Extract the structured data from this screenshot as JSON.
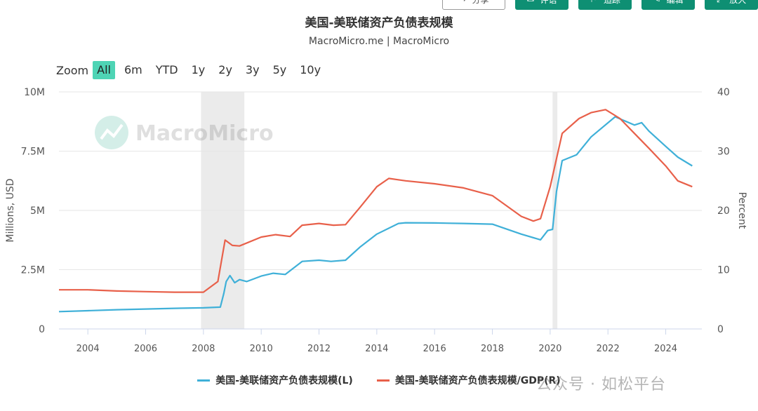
{
  "toolbar": {
    "buttons": [
      {
        "label": "分享",
        "icon": "share-icon",
        "style": "outline"
      },
      {
        "label": "评语",
        "icon": "comment-icon",
        "style": "green"
      },
      {
        "label": "追踪",
        "icon": "track-icon",
        "style": "green"
      },
      {
        "label": "编辑",
        "icon": "edit-icon",
        "style": "green"
      },
      {
        "label": "放大",
        "icon": "expand-icon",
        "style": "green"
      }
    ]
  },
  "zoom": {
    "label": "Zoom",
    "options": [
      "All",
      "6m",
      "YTD",
      "1y",
      "2y",
      "3y",
      "5y",
      "10y"
    ],
    "selected": "All"
  },
  "watermark": {
    "brand": "MacroMicro",
    "bottom": "公众号 · 如松平台"
  },
  "colors": {
    "series_l": "#3fb0d8",
    "series_r": "#e8604a",
    "zoom_active": "#4ed4b5",
    "recession": "#ebebeb"
  },
  "chart_data": {
    "type": "line",
    "title": "美国-美联储资产负债表规模",
    "subtitle": "MacroMicro.me | MacroMicro",
    "xlabel": "",
    "ylabel_left": "Millions, USD",
    "ylabel_right": "Percent",
    "x_ticks": [
      "2004",
      "2006",
      "2008",
      "2010",
      "2012",
      "2014",
      "2016",
      "2018",
      "2020",
      "2022",
      "2024"
    ],
    "y_left_ticks": [
      "0",
      "2.5M",
      "5M",
      "7.5M",
      "10M"
    ],
    "y_right_ticks": [
      "0",
      "10",
      "20",
      "30",
      "40"
    ],
    "ylim_left": [
      0,
      10000000
    ],
    "ylim_right": [
      0,
      40
    ],
    "xlim": [
      "2003-01-01",
      "2025-04-01"
    ],
    "recessions": [
      [
        "2007-12-01",
        "2009-06-01"
      ],
      [
        "2020-02-01",
        "2020-04-01"
      ]
    ],
    "series": [
      {
        "name": "美国-美联储资产负债表规模(L)",
        "axis": "left",
        "points": [
          [
            "2003-01-01",
            730000
          ],
          [
            "2004-01-01",
            770000
          ],
          [
            "2005-01-01",
            810000
          ],
          [
            "2006-01-01",
            840000
          ],
          [
            "2007-01-01",
            870000
          ],
          [
            "2008-01-01",
            890000
          ],
          [
            "2008-08-01",
            920000
          ],
          [
            "2008-09-15",
            1500000
          ],
          [
            "2008-10-15",
            2000000
          ],
          [
            "2008-12-01",
            2250000
          ],
          [
            "2009-02-01",
            1950000
          ],
          [
            "2009-04-01",
            2080000
          ],
          [
            "2009-07-01",
            2000000
          ],
          [
            "2010-01-01",
            2230000
          ],
          [
            "2010-06-01",
            2350000
          ],
          [
            "2010-11-01",
            2300000
          ],
          [
            "2011-06-01",
            2850000
          ],
          [
            "2012-01-01",
            2900000
          ],
          [
            "2012-06-01",
            2850000
          ],
          [
            "2012-12-01",
            2900000
          ],
          [
            "2013-06-01",
            3450000
          ],
          [
            "2014-01-01",
            4000000
          ],
          [
            "2014-10-01",
            4450000
          ],
          [
            "2015-01-01",
            4480000
          ],
          [
            "2016-01-01",
            4470000
          ],
          [
            "2017-01-01",
            4450000
          ],
          [
            "2018-01-01",
            4420000
          ],
          [
            "2019-01-01",
            4000000
          ],
          [
            "2019-09-01",
            3760000
          ],
          [
            "2019-12-01",
            4150000
          ],
          [
            "2020-02-01",
            4200000
          ],
          [
            "2020-03-20",
            5800000
          ],
          [
            "2020-06-01",
            7100000
          ],
          [
            "2020-12-01",
            7350000
          ],
          [
            "2021-06-01",
            8100000
          ],
          [
            "2022-04-01",
            8950000
          ],
          [
            "2022-12-01",
            8600000
          ],
          [
            "2023-03-01",
            8700000
          ],
          [
            "2023-06-01",
            8350000
          ],
          [
            "2024-01-01",
            7700000
          ],
          [
            "2024-06-01",
            7250000
          ],
          [
            "2024-12-01",
            6880000
          ]
        ]
      },
      {
        "name": "美国-美联储资产负债表规模/GDP(R)",
        "axis": "right",
        "points": [
          [
            "2003-01-01",
            6.6
          ],
          [
            "2004-01-01",
            6.6
          ],
          [
            "2005-01-01",
            6.4
          ],
          [
            "2006-01-01",
            6.3
          ],
          [
            "2007-01-01",
            6.2
          ],
          [
            "2008-01-01",
            6.2
          ],
          [
            "2008-07-01",
            8.0
          ],
          [
            "2008-10-01",
            15.0
          ],
          [
            "2009-01-01",
            14.1
          ],
          [
            "2009-04-01",
            14.0
          ],
          [
            "2010-01-01",
            15.5
          ],
          [
            "2010-07-01",
            15.9
          ],
          [
            "2011-01-01",
            15.6
          ],
          [
            "2011-06-01",
            17.5
          ],
          [
            "2012-01-01",
            17.8
          ],
          [
            "2012-07-01",
            17.5
          ],
          [
            "2012-12-01",
            17.6
          ],
          [
            "2013-06-01",
            20.5
          ],
          [
            "2014-01-01",
            24.0
          ],
          [
            "2014-06-01",
            25.4
          ],
          [
            "2015-01-01",
            25.0
          ],
          [
            "2016-01-01",
            24.5
          ],
          [
            "2017-01-01",
            23.8
          ],
          [
            "2018-01-01",
            22.5
          ],
          [
            "2019-01-01",
            19.0
          ],
          [
            "2019-06-01",
            18.2
          ],
          [
            "2019-09-01",
            18.6
          ],
          [
            "2020-01-01",
            24.0
          ],
          [
            "2020-06-01",
            33.0
          ],
          [
            "2021-01-01",
            35.5
          ],
          [
            "2021-06-01",
            36.5
          ],
          [
            "2021-12-01",
            37.0
          ],
          [
            "2022-06-01",
            35.5
          ],
          [
            "2022-12-01",
            33.0
          ],
          [
            "2023-06-01",
            30.5
          ],
          [
            "2024-01-01",
            27.5
          ],
          [
            "2024-06-01",
            25.0
          ],
          [
            "2024-12-01",
            24.0
          ]
        ]
      }
    ]
  }
}
